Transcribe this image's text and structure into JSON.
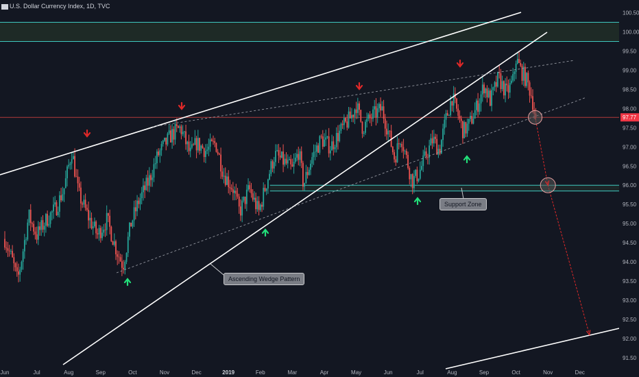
{
  "header": {
    "title": "U.S. Dollar Currency Index, 1D, TVC"
  },
  "chart_data": {
    "type": "candlestick",
    "title": "U.S. Dollar Currency Index, 1D, TVC",
    "ylim": [
      91.25,
      100.75
    ],
    "y_ticks": [
      91.5,
      92.0,
      92.5,
      93.0,
      93.5,
      94.0,
      94.5,
      95.0,
      95.5,
      96.0,
      96.5,
      97.0,
      97.5,
      98.0,
      98.5,
      99.0,
      99.5,
      100.0,
      100.5
    ],
    "y_tick_labels": [
      "91.50",
      "92.00",
      "92.50",
      "93.00",
      "93.50",
      "94.00",
      "94.50",
      "95.00",
      "95.50",
      "96.00",
      "96.50",
      "97.00",
      "97.50",
      "98.00",
      "98.50",
      "99.00",
      "99.50",
      "100.00",
      "100.50"
    ],
    "x_ticks": [
      {
        "label": "Jun",
        "t": 0
      },
      {
        "label": "Jul",
        "t": 1
      },
      {
        "label": "Aug",
        "t": 2
      },
      {
        "label": "Sep",
        "t": 3
      },
      {
        "label": "Oct",
        "t": 4
      },
      {
        "label": "Nov",
        "t": 5
      },
      {
        "label": "Dec",
        "t": 6
      },
      {
        "label": "2019",
        "t": 7,
        "bold": true
      },
      {
        "label": "Feb",
        "t": 8
      },
      {
        "label": "Mar",
        "t": 9
      },
      {
        "label": "Apr",
        "t": 10
      },
      {
        "label": "May",
        "t": 11
      },
      {
        "label": "Jun",
        "t": 12
      },
      {
        "label": "Jul",
        "t": 13
      },
      {
        "label": "Aug",
        "t": 14
      },
      {
        "label": "Sep",
        "t": 15
      },
      {
        "label": "Oct",
        "t": 16
      },
      {
        "label": "Nov",
        "t": 17
      },
      {
        "label": "Dec",
        "t": 18
      }
    ],
    "last_price": {
      "value": 97.77,
      "label": "97.77",
      "color": "#f23645"
    },
    "candle_colors": {
      "up": "#26a69a",
      "down": "#ef5350"
    },
    "price_path": [
      [
        0.0,
        94.6
      ],
      [
        0.25,
        94.0
      ],
      [
        0.4,
        93.5
      ],
      [
        0.55,
        94.2
      ],
      [
        0.75,
        95.2
      ],
      [
        1.0,
        94.7
      ],
      [
        1.3,
        95.1
      ],
      [
        1.6,
        95.4
      ],
      [
        1.85,
        95.9
      ],
      [
        2.1,
        96.9
      ],
      [
        2.3,
        95.8
      ],
      [
        2.6,
        95.2
      ],
      [
        2.9,
        94.7
      ],
      [
        3.2,
        95.1
      ],
      [
        3.5,
        94.3
      ],
      [
        3.7,
        93.9
      ],
      [
        3.95,
        95.0
      ],
      [
        4.2,
        95.6
      ],
      [
        4.5,
        96.1
      ],
      [
        4.8,
        96.8
      ],
      [
        5.2,
        97.3
      ],
      [
        5.5,
        97.5
      ],
      [
        5.8,
        96.8
      ],
      [
        6.0,
        97.1
      ],
      [
        6.3,
        96.9
      ],
      [
        6.6,
        97.1
      ],
      [
        6.85,
        96.3
      ],
      [
        7.15,
        95.9
      ],
      [
        7.35,
        95.3
      ],
      [
        7.65,
        95.9
      ],
      [
        7.95,
        95.3
      ],
      [
        8.2,
        96.1
      ],
      [
        8.45,
        96.8
      ],
      [
        8.75,
        96.6
      ],
      [
        9.0,
        96.4
      ],
      [
        9.2,
        96.9
      ],
      [
        9.35,
        96.0
      ],
      [
        9.6,
        96.7
      ],
      [
        9.9,
        97.2
      ],
      [
        10.2,
        97.0
      ],
      [
        10.5,
        97.4
      ],
      [
        10.85,
        97.8
      ],
      [
        11.0,
        98.1
      ],
      [
        11.2,
        97.5
      ],
      [
        11.5,
        97.8
      ],
      [
        11.8,
        98.0
      ],
      [
        12.0,
        97.4
      ],
      [
        12.2,
        96.7
      ],
      [
        12.4,
        97.3
      ],
      [
        12.6,
        96.6
      ],
      [
        12.75,
        96.1
      ],
      [
        12.95,
        96.3
      ],
      [
        13.2,
        96.8
      ],
      [
        13.4,
        97.2
      ],
      [
        13.6,
        96.9
      ],
      [
        13.8,
        97.7
      ],
      [
        14.0,
        98.3
      ],
      [
        14.2,
        97.8
      ],
      [
        14.35,
        97.4
      ],
      [
        14.55,
        97.6
      ],
      [
        14.8,
        98.1
      ],
      [
        15.0,
        98.6
      ],
      [
        15.2,
        98.2
      ],
      [
        15.45,
        98.8
      ],
      [
        15.7,
        98.4
      ],
      [
        15.9,
        98.7
      ],
      [
        16.0,
        99.3
      ],
      [
        16.15,
        99.0
      ],
      [
        16.35,
        98.7
      ],
      [
        16.5,
        98.3
      ],
      [
        16.6,
        97.77
      ]
    ],
    "projection": [
      [
        16.6,
        97.77
      ],
      [
        17.0,
        96.0
      ],
      [
        18.3,
        92.1
      ]
    ],
    "zones": [
      {
        "y1": 99.75,
        "y2": 100.25,
        "fill": "#1e2a26"
      },
      {
        "y1": 95.85,
        "y2": 96.0,
        "fill": "#1c2628"
      }
    ],
    "annotations": [
      {
        "text": "Ascending Wedge Pattern"
      },
      {
        "text": "Support Zone"
      }
    ]
  }
}
